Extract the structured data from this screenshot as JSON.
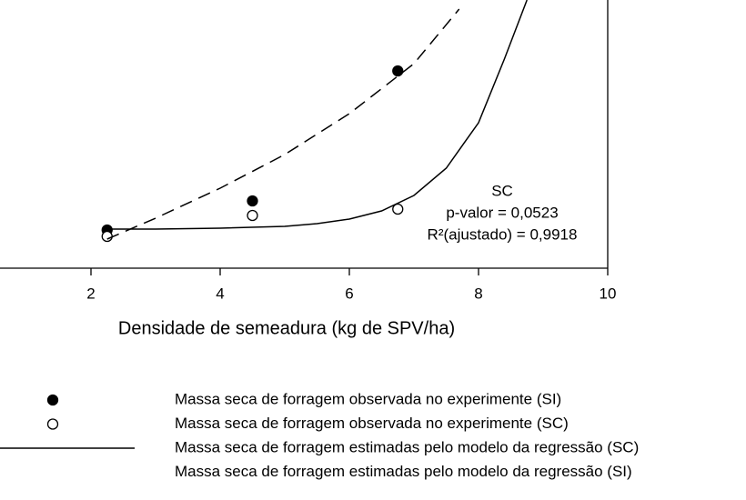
{
  "chart_data": {
    "type": "scatter",
    "xlabel": "Densidade de semeadura (kg de SPV/ha)",
    "xlim": [
      0,
      10
    ],
    "xticks": [
      2,
      4,
      6,
      8,
      10
    ],
    "ylim": [
      0,
      300
    ],
    "annotations": [
      "SC",
      "p-valor = 0,0523",
      "R²(ajustado) = 0,9918"
    ],
    "series": [
      {
        "name": "Massa seca de forragem observada no experimente (SI)",
        "color": "#000000",
        "marker": "filled",
        "x": [
          2.25,
          4.5,
          6.75
        ],
        "values": [
          42,
          74,
          217
        ]
      },
      {
        "name": "Massa seca de forragem observada no experimente (SC)",
        "color": "#000000",
        "marker": "open",
        "x": [
          2.25,
          4.5,
          6.75
        ],
        "values": [
          35,
          58,
          65
        ]
      },
      {
        "name": "Massa seca de forragem estimadas pelo modelo da regressão (SC)",
        "color": "#000000",
        "line": "solid",
        "x": [
          2.25,
          3,
          4,
          5,
          5.5,
          6,
          6.5,
          7,
          7.5,
          8,
          8.4,
          8.75
        ],
        "values": [
          43,
          43,
          44,
          46,
          49,
          54,
          63,
          80,
          110,
          160,
          230,
          295
        ]
      },
      {
        "name": "Massa seca de forragem estimadas pelo modelo da regressão (SI)",
        "color": "#000000",
        "line": "dashed",
        "x": [
          2.25,
          3,
          4,
          5,
          6,
          7,
          7.7
        ],
        "values": [
          32,
          55,
          88,
          125,
          170,
          225,
          285
        ]
      }
    ]
  }
}
